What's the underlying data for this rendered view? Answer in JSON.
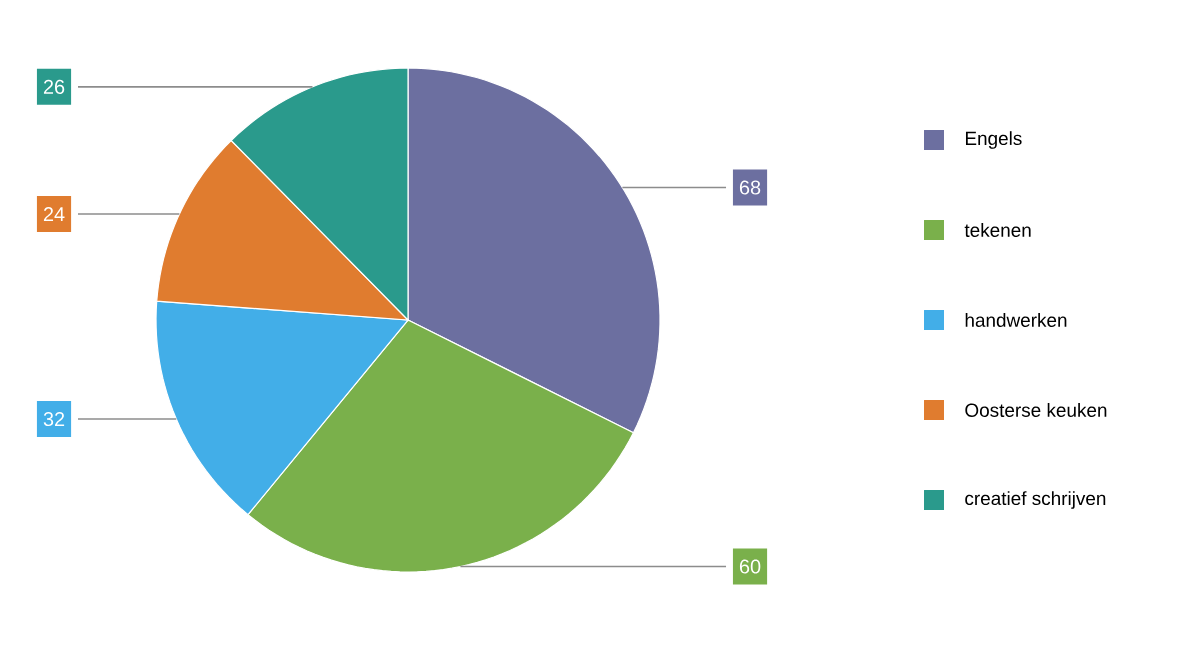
{
  "chart_data": {
    "type": "pie",
    "categories": [
      "Engels",
      "tekenen",
      "handwerken",
      "Oosterse keuken",
      "creatief schrijven"
    ],
    "values": [
      68,
      60,
      32,
      24,
      26
    ],
    "colors": [
      "#6c6fa0",
      "#7ab04b",
      "#42aee8",
      "#e07c2f",
      "#2a9a8c"
    ],
    "data_labels": true,
    "legend": "right"
  }
}
